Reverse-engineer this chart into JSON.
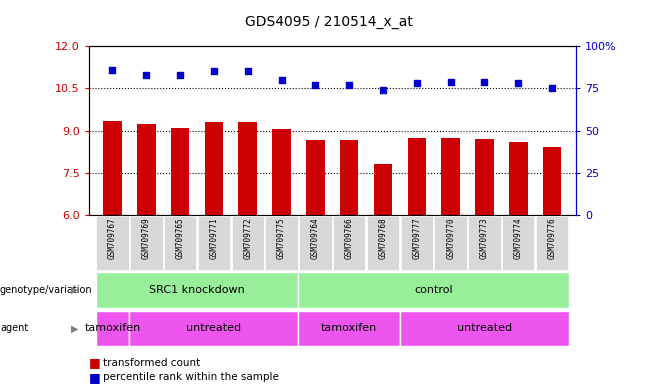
{
  "title": "GDS4095 / 210514_x_at",
  "samples": [
    "GSM709767",
    "GSM709769",
    "GSM709765",
    "GSM709771",
    "GSM709772",
    "GSM709775",
    "GSM709764",
    "GSM709766",
    "GSM709768",
    "GSM709777",
    "GSM709770",
    "GSM709773",
    "GSM709774",
    "GSM709776"
  ],
  "bar_values": [
    9.35,
    9.25,
    9.1,
    9.3,
    9.3,
    9.05,
    8.65,
    8.65,
    7.8,
    8.75,
    8.75,
    8.7,
    8.6,
    8.4
  ],
  "dot_values": [
    86,
    83,
    83,
    85,
    85,
    80,
    77,
    77,
    74,
    78,
    79,
    79,
    78,
    75
  ],
  "bar_color": "#cc0000",
  "dot_color": "#0000cc",
  "ylim_left": [
    6,
    12
  ],
  "ylim_right": [
    0,
    100
  ],
  "yticks_left": [
    6,
    7.5,
    9,
    10.5,
    12
  ],
  "yticks_right": [
    0,
    25,
    50,
    75,
    100
  ],
  "grid_values": [
    7.5,
    9.0,
    10.5
  ],
  "genotype_color": "#99ee99",
  "agent_color": "#ee55ee",
  "bar_color_hex": "#cc0000",
  "dot_color_hex": "#0000cc",
  "bar_width": 0.55,
  "ylabel_left_color": "#cc0000",
  "ylabel_right_color": "#0000cc",
  "geno_spans": [
    [
      0,
      5,
      "SRC1 knockdown"
    ],
    [
      6,
      13,
      "control"
    ]
  ],
  "agent_spans": [
    [
      0,
      0,
      "tamoxifen"
    ],
    [
      1,
      5,
      "untreated"
    ],
    [
      6,
      8,
      "tamoxifen"
    ],
    [
      9,
      13,
      "untreated"
    ]
  ]
}
